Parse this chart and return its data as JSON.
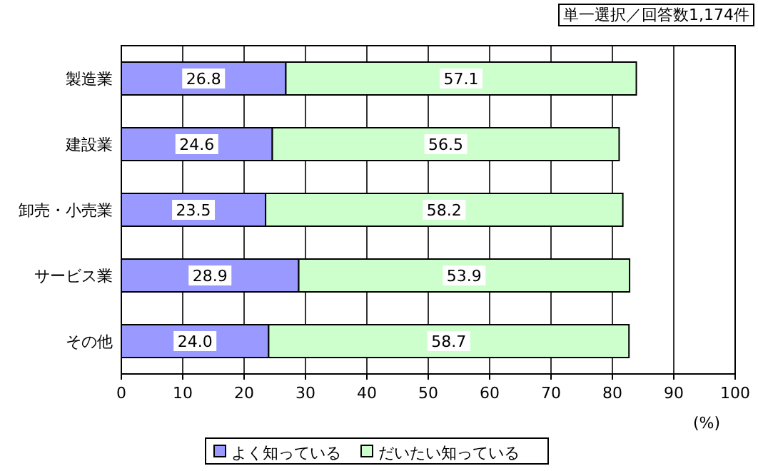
{
  "chart_data": {
    "type": "bar",
    "orientation": "horizontal",
    "stacked": true,
    "categories": [
      "製造業",
      "建設業",
      "卸売・小売業",
      "サービス業",
      "その他"
    ],
    "series": [
      {
        "name": "よく知っている",
        "color": "#9999ff",
        "values": [
          26.8,
          24.6,
          23.5,
          28.9,
          24.0
        ],
        "value_labels": [
          "26.8",
          "24.6",
          "23.5",
          "28.9",
          "24.0"
        ]
      },
      {
        "name": "だいたい知っている",
        "color": "#ccffcc",
        "values": [
          57.1,
          56.5,
          58.2,
          53.9,
          58.7
        ],
        "value_labels": [
          "57.1",
          "56.5",
          "58.2",
          "53.9",
          "58.7"
        ]
      }
    ],
    "xlim": [
      0,
      100
    ],
    "xticks": [
      0,
      10,
      20,
      30,
      40,
      50,
      60,
      70,
      80,
      90,
      100
    ],
    "xlabel": "(%)",
    "grid": "x",
    "legend": "bottom",
    "annotations": [
      "単一選択／回答数1,174件"
    ]
  }
}
